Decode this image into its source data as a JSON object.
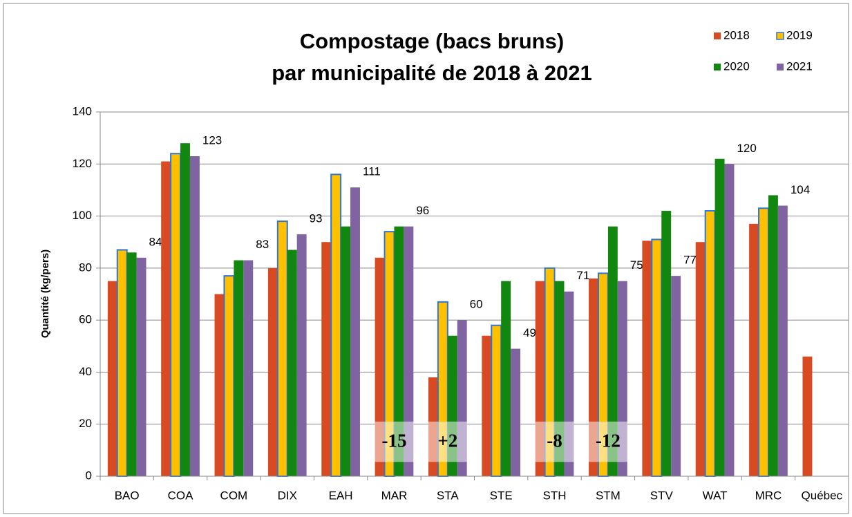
{
  "chart_data": {
    "type": "bar",
    "title": [
      "Compostage (bacs bruns)",
      "par municipalité de 2018 à 2021"
    ],
    "y_label": "Quantité (kg/pers)",
    "categories": [
      "BAO",
      "COA",
      "COM",
      "DIX",
      "EAH",
      "MAR",
      "STA",
      "STE",
      "STH",
      "STM",
      "STV",
      "WAT",
      "MRC",
      "Québec"
    ],
    "series": [
      {
        "name": "2018",
        "color": "#d84a22",
        "values": [
          75,
          121,
          70,
          80,
          90,
          84,
          38,
          54,
          75,
          76,
          90.5,
          90,
          97,
          46
        ]
      },
      {
        "name": "2019",
        "color": "#ffc000",
        "border": "#2e75d6",
        "values": [
          87,
          124,
          77,
          98,
          116,
          94,
          67,
          58,
          80,
          78,
          91,
          102,
          103,
          null
        ]
      },
      {
        "name": "2020",
        "color": "#12870f",
        "values": [
          86,
          128,
          83,
          87,
          96,
          96,
          54,
          75,
          75,
          96,
          102,
          122,
          108,
          null
        ]
      },
      {
        "name": "2021",
        "color": "#8064a2",
        "values": [
          84,
          123,
          83,
          93,
          111,
          96,
          60,
          49,
          71,
          75,
          77,
          120,
          104,
          null
        ],
        "labeled": true
      }
    ],
    "ylim": [
      0,
      140
    ],
    "yticks": [
      0,
      20,
      40,
      60,
      80,
      100,
      120,
      140
    ],
    "grid": true,
    "legend": "top-right",
    "annotations": [
      {
        "category": "MAR",
        "text": "-15"
      },
      {
        "category": "STA",
        "text": "+2"
      },
      {
        "category": "STH",
        "text": "-8"
      },
      {
        "category": "STM",
        "text": "-12"
      }
    ]
  }
}
